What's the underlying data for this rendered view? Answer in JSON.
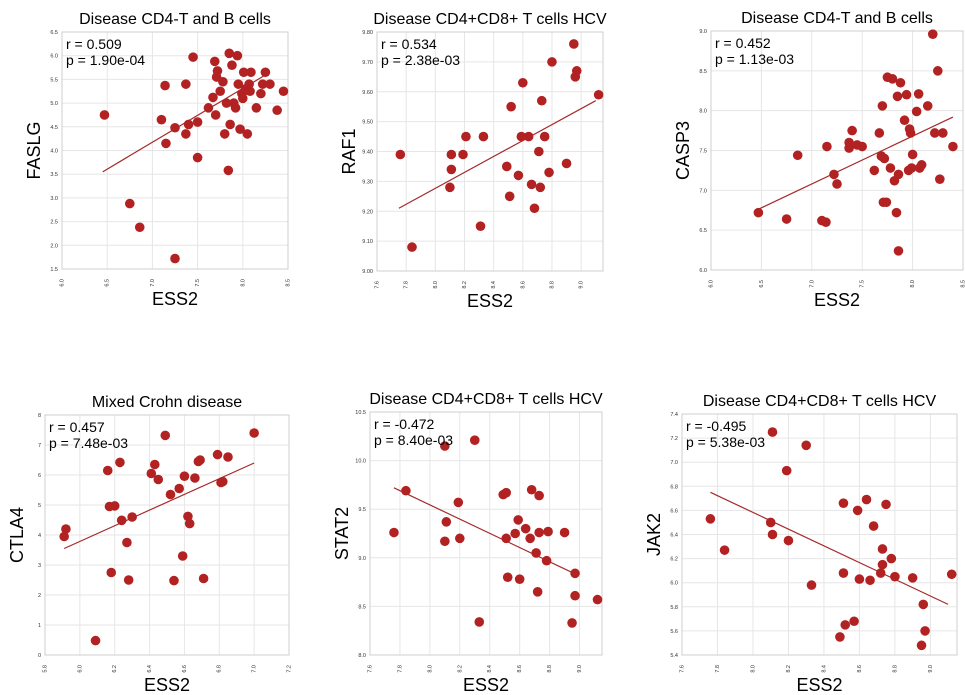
{
  "style": {
    "point_color": "#b22222",
    "line_color": "#a52a2a",
    "grid_color": "#e6e6e6"
  },
  "chart_data": [
    {
      "type": "scatter",
      "title": "Disease CD4-T and B cells",
      "xlabel": "ESS2",
      "ylabel": "FASLG",
      "stat_r": "r = 0.509",
      "stat_p": "p = 1.90e-04",
      "xlim": [
        6.0,
        8.5
      ],
      "ylim": [
        1.5,
        6.5
      ],
      "xticks": [
        6.0,
        6.5,
        7.0,
        7.5,
        8.0,
        8.5
      ],
      "xtick_labels": [
        "6.0",
        "6.5",
        "7.0",
        "7.5",
        "8.0",
        "8.5"
      ],
      "yticks": [
        1.5,
        2.0,
        2.5,
        3.0,
        3.5,
        4.0,
        4.5,
        5.0,
        5.5,
        6.0,
        6.5
      ],
      "ytick_labels": [
        "1.5",
        "2.0",
        "2.5",
        "3.0",
        "3.5",
        "4.0",
        "4.5",
        "5.0",
        "5.5",
        "6.0",
        "6.5"
      ],
      "grid": true,
      "fit": {
        "x": [
          6.45,
          8.3
        ],
        "y": [
          3.55,
          5.65
        ]
      },
      "points": [
        [
          6.47,
          4.75
        ],
        [
          6.75,
          2.88
        ],
        [
          6.86,
          2.38
        ],
        [
          7.1,
          4.65
        ],
        [
          7.14,
          5.37
        ],
        [
          7.15,
          4.15
        ],
        [
          7.25,
          1.72
        ],
        [
          7.25,
          4.48
        ],
        [
          7.37,
          4.35
        ],
        [
          7.37,
          5.4
        ],
        [
          7.4,
          4.55
        ],
        [
          7.45,
          5.97
        ],
        [
          7.5,
          3.85
        ],
        [
          7.5,
          4.6
        ],
        [
          7.62,
          4.9
        ],
        [
          7.67,
          5.12
        ],
        [
          7.69,
          5.88
        ],
        [
          7.7,
          4.75
        ],
        [
          7.71,
          5.55
        ],
        [
          7.72,
          5.68
        ],
        [
          7.75,
          5.25
        ],
        [
          7.78,
          5.45
        ],
        [
          7.8,
          4.35
        ],
        [
          7.82,
          5.0
        ],
        [
          7.84,
          3.58
        ],
        [
          7.85,
          6.05
        ],
        [
          7.86,
          4.55
        ],
        [
          7.88,
          5.8
        ],
        [
          7.9,
          5.0
        ],
        [
          7.92,
          4.9
        ],
        [
          7.94,
          6.0
        ],
        [
          7.95,
          5.4
        ],
        [
          7.97,
          4.45
        ],
        [
          7.99,
          5.2
        ],
        [
          8.0,
          5.1
        ],
        [
          8.01,
          5.65
        ],
        [
          8.03,
          5.3
        ],
        [
          8.05,
          4.35
        ],
        [
          8.07,
          5.4
        ],
        [
          8.08,
          5.25
        ],
        [
          8.09,
          5.65
        ],
        [
          8.15,
          4.9
        ],
        [
          8.2,
          5.2
        ],
        [
          8.22,
          5.4
        ],
        [
          8.25,
          5.65
        ],
        [
          8.3,
          5.4
        ],
        [
          8.38,
          4.85
        ],
        [
          8.45,
          5.25
        ]
      ]
    },
    {
      "type": "scatter",
      "title": "Disease CD4+CD8+ T cells HCV",
      "xlabel": "ESS2",
      "ylabel": "RAF1",
      "stat_r": "r = 0.534",
      "stat_p": "p = 2.38e-03",
      "xlim": [
        7.6,
        9.15
      ],
      "ylim": [
        9.0,
        9.8
      ],
      "xticks": [
        7.6,
        7.8,
        8.0,
        8.2,
        8.4,
        8.6,
        8.8,
        9.0
      ],
      "xtick_labels": [
        "7.6",
        "7.8",
        "8.0",
        "8.2",
        "8.4",
        "8.6",
        "8.8",
        "9.0"
      ],
      "yticks": [
        9.0,
        9.1,
        9.2,
        9.3,
        9.4,
        9.5,
        9.6,
        9.7,
        9.8
      ],
      "ytick_labels": [
        "9.00",
        "9.10",
        "9.20",
        "9.30",
        "9.40",
        "9.50",
        "9.60",
        "9.70",
        "9.80"
      ],
      "grid": true,
      "fit": {
        "x": [
          7.75,
          9.1
        ],
        "y": [
          9.21,
          9.57
        ]
      },
      "points": [
        [
          7.76,
          9.39
        ],
        [
          7.84,
          9.08
        ],
        [
          8.1,
          9.28
        ],
        [
          8.11,
          9.39
        ],
        [
          8.11,
          9.34
        ],
        [
          8.19,
          9.39
        ],
        [
          8.21,
          9.45
        ],
        [
          8.31,
          9.15
        ],
        [
          8.33,
          9.45
        ],
        [
          8.49,
          9.35
        ],
        [
          8.51,
          9.25
        ],
        [
          8.52,
          9.55
        ],
        [
          8.57,
          9.32
        ],
        [
          8.59,
          9.45
        ],
        [
          8.6,
          9.63
        ],
        [
          8.64,
          9.45
        ],
        [
          8.66,
          9.29
        ],
        [
          8.68,
          9.21
        ],
        [
          8.71,
          9.4
        ],
        [
          8.72,
          9.28
        ],
        [
          8.73,
          9.57
        ],
        [
          8.75,
          9.45
        ],
        [
          8.78,
          9.33
        ],
        [
          8.8,
          9.7
        ],
        [
          8.9,
          9.36
        ],
        [
          8.95,
          9.76
        ],
        [
          8.96,
          9.65
        ],
        [
          8.97,
          9.67
        ],
        [
          9.12,
          9.59
        ]
      ]
    },
    {
      "type": "scatter",
      "title": "Disease CD4-T and B cells",
      "xlabel": "ESS2",
      "ylabel": "CASP3",
      "stat_r": "r = 0.452",
      "stat_p": "p = 1.13e-03",
      "xlim": [
        6.0,
        8.5
      ],
      "ylim": [
        6.0,
        9.0
      ],
      "xticks": [
        6.0,
        6.5,
        7.0,
        7.5,
        8.0,
        8.5
      ],
      "xtick_labels": [
        "6.0",
        "6.5",
        "7.0",
        "7.5",
        "8.0",
        "8.5"
      ],
      "yticks": [
        6.0,
        6.5,
        7.0,
        7.5,
        8.0,
        8.5,
        9.0
      ],
      "ytick_labels": [
        "6.0",
        "6.5",
        "7.0",
        "7.5",
        "8.0",
        "8.5",
        "9.0"
      ],
      "grid": true,
      "fit": {
        "x": [
          6.45,
          8.4
        ],
        "y": [
          6.75,
          7.92
        ]
      },
      "points": [
        [
          6.47,
          6.72
        ],
        [
          6.75,
          6.64
        ],
        [
          6.86,
          7.44
        ],
        [
          7.1,
          6.62
        ],
        [
          7.14,
          6.6
        ],
        [
          7.15,
          7.55
        ],
        [
          7.22,
          7.2
        ],
        [
          7.25,
          7.08
        ],
        [
          7.37,
          7.53
        ],
        [
          7.37,
          7.6
        ],
        [
          7.4,
          7.75
        ],
        [
          7.45,
          7.57
        ],
        [
          7.5,
          7.55
        ],
        [
          7.62,
          7.25
        ],
        [
          7.67,
          7.72
        ],
        [
          7.69,
          7.43
        ],
        [
          7.7,
          8.06
        ],
        [
          7.71,
          6.85
        ],
        [
          7.72,
          7.4
        ],
        [
          7.74,
          6.85
        ],
        [
          7.75,
          8.42
        ],
        [
          7.78,
          7.28
        ],
        [
          7.8,
          8.4
        ],
        [
          7.82,
          7.12
        ],
        [
          7.84,
          6.72
        ],
        [
          7.85,
          8.18
        ],
        [
          7.86,
          7.2
        ],
        [
          7.86,
          6.24
        ],
        [
          7.88,
          8.35
        ],
        [
          7.92,
          7.88
        ],
        [
          7.94,
          8.2
        ],
        [
          7.96,
          7.25
        ],
        [
          7.97,
          7.77
        ],
        [
          7.98,
          7.72
        ],
        [
          7.99,
          7.28
        ],
        [
          8.0,
          7.45
        ],
        [
          8.04,
          7.99
        ],
        [
          8.06,
          8.21
        ],
        [
          8.07,
          7.28
        ],
        [
          8.09,
          7.32
        ],
        [
          8.15,
          8.06
        ],
        [
          8.2,
          8.96
        ],
        [
          8.22,
          7.72
        ],
        [
          8.25,
          8.5
        ],
        [
          8.27,
          7.14
        ],
        [
          8.3,
          7.72
        ],
        [
          8.4,
          7.55
        ]
      ]
    },
    {
      "type": "scatter",
      "title": "Mixed Crohn disease",
      "xlabel": "ESS2",
      "ylabel": "CTLA4",
      "stat_r": "r = 0.457",
      "stat_p": "p = 7.48e-03",
      "xlim": [
        5.8,
        7.2
      ],
      "ylim": [
        0,
        8
      ],
      "xticks": [
        5.8,
        6.0,
        6.2,
        6.4,
        6.6,
        6.8,
        7.0,
        7.2
      ],
      "xtick_labels": [
        "5.8",
        "6.0",
        "6.2",
        "6.4",
        "6.6",
        "6.8",
        "7.0",
        "7.2"
      ],
      "yticks": [
        0,
        1,
        2,
        3,
        4,
        5,
        6,
        7,
        8
      ],
      "ytick_labels": [
        "0",
        "1",
        "2",
        "3",
        "4",
        "5",
        "6",
        "7",
        "8"
      ],
      "grid": true,
      "fit": {
        "x": [
          5.91,
          7.0
        ],
        "y": [
          3.55,
          6.4
        ]
      },
      "points": [
        [
          5.91,
          3.95
        ],
        [
          5.92,
          4.2
        ],
        [
          6.09,
          0.48
        ],
        [
          6.16,
          6.15
        ],
        [
          6.17,
          4.95
        ],
        [
          6.18,
          2.75
        ],
        [
          6.2,
          4.97
        ],
        [
          6.23,
          6.42
        ],
        [
          6.24,
          4.49
        ],
        [
          6.27,
          3.75
        ],
        [
          6.28,
          2.5
        ],
        [
          6.3,
          4.6
        ],
        [
          6.41,
          6.05
        ],
        [
          6.43,
          6.35
        ],
        [
          6.45,
          5.85
        ],
        [
          6.49,
          7.32
        ],
        [
          6.52,
          5.35
        ],
        [
          6.54,
          2.48
        ],
        [
          6.57,
          5.55
        ],
        [
          6.59,
          3.3
        ],
        [
          6.6,
          5.96
        ],
        [
          6.62,
          4.62
        ],
        [
          6.63,
          4.38
        ],
        [
          6.66,
          5.9
        ],
        [
          6.68,
          6.45
        ],
        [
          6.69,
          6.5
        ],
        [
          6.71,
          2.55
        ],
        [
          6.79,
          6.68
        ],
        [
          6.81,
          5.75
        ],
        [
          6.82,
          5.78
        ],
        [
          6.85,
          6.6
        ],
        [
          7.0,
          7.4
        ]
      ]
    },
    {
      "type": "scatter",
      "title": "Disease CD4+CD8+ T cells HCV",
      "xlabel": "ESS2",
      "ylabel": "STAT2",
      "stat_r": "r = -0.472",
      "stat_p": "p = 8.40e-03",
      "xlim": [
        7.6,
        9.15
      ],
      "ylim": [
        8.0,
        10.5
      ],
      "xticks": [
        7.6,
        7.8,
        8.0,
        8.2,
        8.4,
        8.6,
        8.8,
        9.0
      ],
      "xtick_labels": [
        "7.6",
        "7.8",
        "8.0",
        "8.2",
        "8.4",
        "8.6",
        "8.8",
        "9.0"
      ],
      "yticks": [
        8.0,
        8.5,
        9.0,
        9.5,
        10.0,
        10.5
      ],
      "ytick_labels": [
        "8.0",
        "8.5",
        "9.0",
        "9.5",
        "10.0",
        "10.5"
      ],
      "grid": true,
      "fit": {
        "x": [
          7.76,
          8.99
        ],
        "y": [
          9.72,
          8.82
        ]
      },
      "points": [
        [
          7.76,
          9.26
        ],
        [
          7.84,
          9.69
        ],
        [
          8.1,
          10.15
        ],
        [
          8.1,
          9.17
        ],
        [
          8.11,
          9.37
        ],
        [
          8.19,
          9.57
        ],
        [
          8.2,
          9.2
        ],
        [
          8.3,
          10.21
        ],
        [
          8.33,
          8.34
        ],
        [
          8.49,
          9.65
        ],
        [
          8.51,
          9.2
        ],
        [
          8.51,
          9.67
        ],
        [
          8.52,
          8.8
        ],
        [
          8.57,
          9.25
        ],
        [
          8.59,
          9.39
        ],
        [
          8.6,
          8.78
        ],
        [
          8.64,
          9.3
        ],
        [
          8.67,
          9.2
        ],
        [
          8.68,
          9.7
        ],
        [
          8.71,
          9.05
        ],
        [
          8.72,
          8.65
        ],
        [
          8.73,
          9.64
        ],
        [
          8.73,
          9.26
        ],
        [
          8.78,
          8.97
        ],
        [
          8.79,
          9.27
        ],
        [
          8.9,
          9.26
        ],
        [
          8.95,
          8.33
        ],
        [
          8.97,
          8.84
        ],
        [
          8.97,
          8.61
        ],
        [
          9.12,
          8.57
        ]
      ]
    },
    {
      "type": "scatter",
      "title": "Disease CD4+CD8+ T cells HCV",
      "xlabel": "ESS2",
      "ylabel": "JAK2",
      "stat_r": "r = -0.495",
      "stat_p": "p = 5.38e-03",
      "xlim": [
        7.6,
        9.15
      ],
      "ylim": [
        5.4,
        7.4
      ],
      "xticks": [
        7.6,
        7.8,
        8.0,
        8.2,
        8.4,
        8.6,
        8.8,
        9.0
      ],
      "xtick_labels": [
        "7.6",
        "7.8",
        "8.0",
        "8.2",
        "8.4",
        "8.6",
        "8.8",
        "9.0"
      ],
      "yticks": [
        5.4,
        5.6,
        5.8,
        6.0,
        6.2,
        6.4,
        6.6,
        6.8,
        7.0,
        7.2,
        7.4
      ],
      "ytick_labels": [
        "5.4",
        "5.6",
        "5.8",
        "6.0",
        "6.2",
        "6.4",
        "6.6",
        "6.8",
        "7.0",
        "7.2",
        "7.4"
      ],
      "grid": true,
      "fit": {
        "x": [
          7.76,
          9.1
        ],
        "y": [
          6.75,
          5.82
        ]
      },
      "points": [
        [
          7.76,
          6.53
        ],
        [
          7.84,
          6.27
        ],
        [
          8.1,
          6.5
        ],
        [
          8.11,
          6.4
        ],
        [
          8.11,
          7.25
        ],
        [
          8.19,
          6.93
        ],
        [
          8.2,
          6.35
        ],
        [
          8.3,
          7.14
        ],
        [
          8.33,
          5.98
        ],
        [
          8.49,
          5.55
        ],
        [
          8.51,
          6.08
        ],
        [
          8.51,
          6.66
        ],
        [
          8.52,
          5.65
        ],
        [
          8.57,
          5.68
        ],
        [
          8.59,
          6.6
        ],
        [
          8.6,
          6.03
        ],
        [
          8.64,
          6.69
        ],
        [
          8.66,
          6.02
        ],
        [
          8.68,
          6.47
        ],
        [
          8.72,
          6.08
        ],
        [
          8.73,
          6.28
        ],
        [
          8.73,
          6.15
        ],
        [
          8.75,
          6.65
        ],
        [
          8.78,
          6.2
        ],
        [
          8.8,
          6.05
        ],
        [
          8.9,
          6.04
        ],
        [
          8.95,
          5.48
        ],
        [
          8.96,
          5.82
        ],
        [
          8.97,
          5.6
        ],
        [
          9.12,
          6.07
        ]
      ]
    }
  ]
}
